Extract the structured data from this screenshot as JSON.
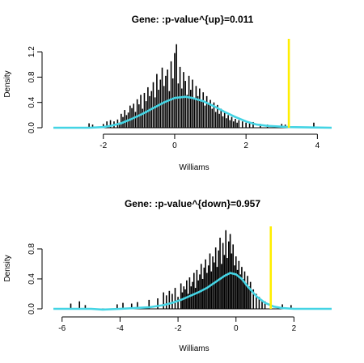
{
  "chart_data": [
    {
      "type": "histogram",
      "title": "Gene: :p-value^{up}=0.011",
      "xlabel": "Williams",
      "ylabel": "Density",
      "xlim": [
        -3.4,
        4.4
      ],
      "ylim": [
        0,
        1.38
      ],
      "xticks": [
        -2,
        0,
        2,
        4
      ],
      "yticks": [
        0.0,
        0.4,
        0.8,
        1.2
      ],
      "bars_color": "#000000",
      "density_color": "#44d4e4",
      "marker_color": "#ffee00",
      "observed_value": 3.2,
      "density_curve": {
        "x": [
          -3.4,
          -2.4,
          -2.0,
          -1.8,
          -1.5,
          -1.2,
          -0.9,
          -0.6,
          -0.3,
          0.0,
          0.3,
          0.5,
          0.8,
          1.1,
          1.4,
          1.7,
          2.0,
          2.3,
          2.6,
          2.9,
          3.2,
          4.4
        ],
        "y": [
          0.0,
          0.0,
          0.01,
          0.03,
          0.07,
          0.14,
          0.22,
          0.31,
          0.4,
          0.47,
          0.49,
          0.47,
          0.42,
          0.34,
          0.25,
          0.17,
          0.1,
          0.05,
          0.03,
          0.02,
          0.01,
          0.0
        ]
      },
      "spikes": {
        "x": [
          -2.4,
          -2.3,
          -2.0,
          -1.9,
          -1.8,
          -1.7,
          -1.6,
          -1.55,
          -1.5,
          -1.45,
          -1.4,
          -1.35,
          -1.3,
          -1.25,
          -1.2,
          -1.15,
          -1.1,
          -1.05,
          -1.0,
          -0.95,
          -0.9,
          -0.85,
          -0.8,
          -0.75,
          -0.7,
          -0.65,
          -0.6,
          -0.55,
          -0.5,
          -0.45,
          -0.4,
          -0.35,
          -0.3,
          -0.25,
          -0.2,
          -0.15,
          -0.1,
          -0.05,
          0.0,
          0.05,
          0.1,
          0.15,
          0.2,
          0.25,
          0.3,
          0.35,
          0.4,
          0.45,
          0.5,
          0.55,
          0.6,
          0.65,
          0.7,
          0.75,
          0.8,
          0.85,
          0.9,
          0.95,
          1.0,
          1.05,
          1.1,
          1.15,
          1.2,
          1.25,
          1.3,
          1.35,
          1.4,
          1.45,
          1.5,
          1.55,
          1.6,
          1.65,
          1.7,
          1.75,
          1.8,
          1.9,
          2.0,
          2.1,
          2.2,
          2.4,
          2.6,
          3.0,
          3.1,
          3.9
        ],
        "y": [
          0.07,
          0.05,
          0.06,
          0.1,
          0.12,
          0.1,
          0.13,
          0.08,
          0.22,
          0.17,
          0.28,
          0.2,
          0.24,
          0.35,
          0.31,
          0.38,
          0.25,
          0.45,
          0.37,
          0.52,
          0.3,
          0.55,
          0.42,
          0.64,
          0.5,
          0.58,
          0.72,
          0.48,
          0.85,
          0.6,
          0.76,
          0.95,
          0.66,
          0.82,
          0.92,
          0.58,
          1.05,
          0.78,
          1.18,
          1.32,
          0.7,
          0.96,
          0.62,
          0.88,
          0.74,
          0.52,
          0.82,
          0.6,
          0.76,
          0.46,
          0.66,
          0.5,
          0.62,
          0.42,
          0.56,
          0.35,
          0.5,
          0.38,
          0.44,
          0.3,
          0.4,
          0.25,
          0.36,
          0.22,
          0.3,
          0.18,
          0.26,
          0.15,
          0.2,
          0.12,
          0.17,
          0.1,
          0.14,
          0.08,
          0.12,
          0.1,
          0.08,
          0.07,
          0.09,
          0.06,
          0.05,
          0.06,
          0.05,
          0.08
        ]
      }
    },
    {
      "type": "histogram",
      "title": "Gene: :p-value^{down}=0.957",
      "xlabel": "Williams",
      "ylabel": "Density",
      "xlim": [
        -6.3,
        3.3
      ],
      "ylim": [
        0,
        1.08
      ],
      "xticks": [
        -6,
        -4,
        -2,
        0,
        2
      ],
      "yticks": [
        0.0,
        0.4,
        0.8
      ],
      "bars_color": "#000000",
      "density_color": "#44d4e4",
      "marker_color": "#ffee00",
      "observed_value": 1.2,
      "density_curve": {
        "x": [
          -6.3,
          -5.0,
          -4.6,
          -4.0,
          -3.5,
          -3.0,
          -2.5,
          -2.2,
          -1.9,
          -1.6,
          -1.3,
          -1.0,
          -0.7,
          -0.4,
          -0.2,
          0.0,
          0.2,
          0.4,
          0.7,
          1.0,
          1.3,
          1.6,
          2.0,
          3.3
        ],
        "y": [
          0.0,
          0.0,
          -0.01,
          0.0,
          0.01,
          0.02,
          0.05,
          0.08,
          0.12,
          0.17,
          0.22,
          0.28,
          0.36,
          0.44,
          0.48,
          0.46,
          0.4,
          0.3,
          0.17,
          0.08,
          0.03,
          0.01,
          0.0,
          0.0
        ]
      },
      "spikes": {
        "x": [
          -5.7,
          -5.4,
          -5.2,
          -4.1,
          -3.9,
          -3.6,
          -3.4,
          -3.0,
          -2.7,
          -2.5,
          -2.4,
          -2.3,
          -2.2,
          -2.1,
          -2.0,
          -1.9,
          -1.85,
          -1.8,
          -1.75,
          -1.7,
          -1.65,
          -1.6,
          -1.55,
          -1.5,
          -1.45,
          -1.4,
          -1.35,
          -1.3,
          -1.25,
          -1.2,
          -1.15,
          -1.1,
          -1.05,
          -1.0,
          -0.95,
          -0.9,
          -0.85,
          -0.8,
          -0.75,
          -0.7,
          -0.65,
          -0.6,
          -0.55,
          -0.5,
          -0.45,
          -0.4,
          -0.35,
          -0.3,
          -0.25,
          -0.2,
          -0.15,
          -0.1,
          -0.05,
          0.0,
          0.05,
          0.1,
          0.15,
          0.2,
          0.25,
          0.3,
          0.35,
          0.4,
          0.45,
          0.5,
          0.6,
          0.7,
          0.8,
          0.9,
          1.0,
          1.2,
          1.6,
          1.9
        ],
        "y": [
          0.07,
          0.1,
          0.05,
          0.06,
          0.08,
          0.07,
          0.09,
          0.12,
          0.14,
          0.22,
          0.18,
          0.24,
          0.2,
          0.28,
          0.16,
          0.34,
          0.22,
          0.3,
          0.26,
          0.38,
          0.2,
          0.42,
          0.3,
          0.36,
          0.48,
          0.28,
          0.52,
          0.38,
          0.46,
          0.6,
          0.4,
          0.55,
          0.66,
          0.48,
          0.58,
          0.74,
          0.5,
          0.7,
          0.62,
          0.82,
          0.56,
          0.78,
          0.95,
          0.6,
          0.88,
          0.72,
          1.05,
          0.68,
          0.9,
          1.0,
          0.74,
          0.86,
          0.58,
          0.7,
          0.52,
          0.64,
          0.46,
          0.56,
          0.4,
          0.5,
          0.34,
          0.44,
          0.3,
          0.36,
          0.26,
          0.2,
          0.16,
          0.12,
          0.1,
          0.08,
          0.06,
          0.05
        ]
      }
    }
  ]
}
